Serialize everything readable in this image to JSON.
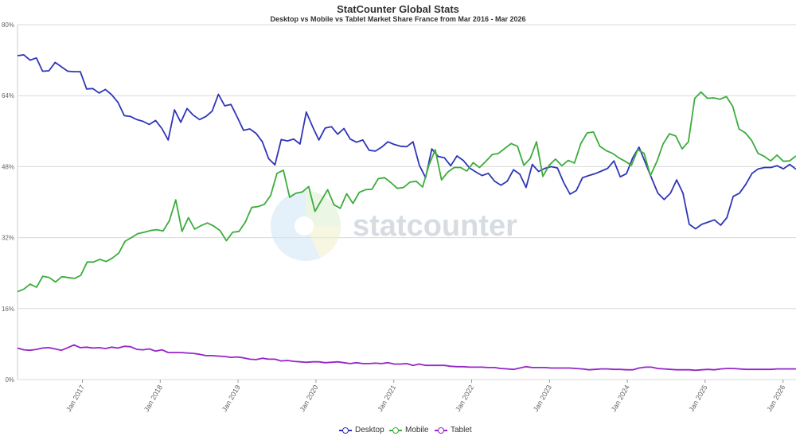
{
  "chart_data": {
    "type": "line",
    "title": "StatCounter Global Stats",
    "subtitle": "Desktop vs Mobile vs Tablet Market Share France from Mar 2016 - Mar 2026",
    "watermark": "statcounter",
    "x_start": "2016-03",
    "x_end": "2026-03",
    "x_tick_labels": [
      "Jan 2017",
      "Jan 2018",
      "Jan 2019",
      "Jan 2020",
      "Jan 2021",
      "Jan 2022",
      "Jan 2023",
      "Jan 2024",
      "Jan 2025",
      "Jan 2026"
    ],
    "y_tick_labels": [
      "0%",
      "16%",
      "32%",
      "48%",
      "64%",
      "80%"
    ],
    "ylim": [
      0,
      80
    ],
    "grid": true,
    "legend_position": "bottom",
    "series": [
      {
        "name": "Desktop",
        "color": "#2f36b5",
        "values": [
          73.0,
          73.2,
          72.0,
          72.5,
          69.5,
          69.6,
          71.5,
          70.5,
          69.5,
          69.4,
          69.4,
          65.5,
          65.6,
          64.6,
          65.4,
          64.2,
          62.5,
          59.5,
          59.3,
          58.6,
          58.2,
          57.5,
          58.4,
          56.6,
          54.0,
          60.8,
          58.0,
          61.1,
          59.6,
          58.6,
          59.3,
          60.5,
          64.3,
          61.7,
          62.0,
          59.2,
          56.2,
          56.5,
          55.5,
          53.6,
          49.8,
          48.4,
          54.1,
          53.8,
          54.2,
          53.1,
          60.3,
          57.0,
          54.0,
          56.7,
          57.0,
          55.3,
          56.6,
          54.2,
          53.5,
          54.0,
          51.7,
          51.5,
          52.4,
          53.6,
          53.0,
          52.6,
          52.5,
          53.6,
          48.3,
          45.5,
          52.0,
          50.3,
          50.0,
          48.2,
          50.4,
          49.4,
          47.7,
          46.8,
          46.0,
          46.5,
          44.7,
          43.8,
          44.7,
          47.3,
          46.3,
          43.3,
          48.5,
          46.9,
          47.6,
          48.0,
          47.7,
          44.4,
          41.8,
          42.6,
          45.5,
          46.0,
          46.4,
          47.0,
          47.6,
          49.3,
          45.7,
          46.4,
          50.0,
          52.4,
          48.9,
          45.4,
          42.0,
          40.6,
          42.0,
          45.0,
          42.0,
          35.0,
          34.0,
          35.0,
          35.5,
          36.0,
          34.8,
          36.5,
          41.3,
          42.0,
          44.0,
          46.5,
          47.5,
          47.8,
          47.8,
          48.2,
          47.5,
          48.5,
          47.4
        ]
      },
      {
        "name": "Mobile",
        "color": "#3bad3b",
        "values": [
          19.8,
          20.4,
          21.5,
          20.8,
          23.3,
          23.0,
          22.0,
          23.2,
          23.0,
          22.8,
          23.5,
          26.5,
          26.5,
          27.1,
          26.6,
          27.4,
          28.5,
          31.2,
          32.0,
          32.9,
          33.2,
          33.6,
          33.8,
          33.5,
          35.8,
          40.5,
          33.4,
          36.5,
          33.9,
          34.7,
          35.3,
          34.6,
          33.6,
          31.3,
          33.2,
          33.4,
          35.5,
          38.8,
          39.0,
          39.5,
          41.5,
          46.5,
          47.2,
          41.1,
          42.0,
          42.3,
          43.5,
          37.9,
          40.4,
          42.8,
          39.4,
          38.6,
          41.9,
          39.7,
          42.2,
          42.8,
          42.9,
          45.3,
          45.5,
          44.4,
          43.1,
          43.3,
          44.5,
          44.7,
          43.4,
          48.3,
          51.8,
          45.0,
          46.8,
          47.8,
          47.8,
          47.0,
          48.9,
          47.8,
          49.2,
          50.7,
          51.0,
          52.1,
          53.2,
          52.6,
          48.3,
          49.8,
          53.6,
          45.8,
          48.3,
          49.7,
          48.2,
          49.4,
          48.8,
          53.2,
          55.6,
          55.8,
          52.6,
          51.6,
          51.0,
          50.0,
          49.2,
          48.3,
          51.8,
          51.0,
          46.0,
          49.1,
          53.1,
          55.4,
          54.9,
          52.0,
          53.6,
          63.4,
          64.8,
          63.4,
          63.5,
          63.2,
          63.8,
          61.6,
          56.5,
          55.6,
          53.9,
          51.0,
          50.3,
          49.3,
          50.6,
          49.2,
          49.3,
          50.4
        ]
      },
      {
        "name": "Tablet",
        "color": "#9526c7",
        "values": [
          7.1,
          6.7,
          6.6,
          6.8,
          7.1,
          7.2,
          6.9,
          6.6,
          7.2,
          7.8,
          7.2,
          7.3,
          7.1,
          7.2,
          7.0,
          7.3,
          7.1,
          7.5,
          7.4,
          6.8,
          6.7,
          6.9,
          6.4,
          6.7,
          6.1,
          6.1,
          6.1,
          6.0,
          5.9,
          5.7,
          5.4,
          5.4,
          5.3,
          5.2,
          5.0,
          5.1,
          4.9,
          4.6,
          4.5,
          4.8,
          4.6,
          4.6,
          4.2,
          4.3,
          4.1,
          4.0,
          3.9,
          4.0,
          4.0,
          3.8,
          3.9,
          4.0,
          3.8,
          3.6,
          3.8,
          3.6,
          3.6,
          3.7,
          3.6,
          3.8,
          3.5,
          3.5,
          3.6,
          3.2,
          3.5,
          3.2,
          3.2,
          3.2,
          3.2,
          3.0,
          2.9,
          2.9,
          2.8,
          2.8,
          2.8,
          2.7,
          2.7,
          2.5,
          2.4,
          2.3,
          2.6,
          2.9,
          2.7,
          2.7,
          2.7,
          2.6,
          2.6,
          2.6,
          2.6,
          2.5,
          2.4,
          2.2,
          2.3,
          2.4,
          2.4,
          2.3,
          2.3,
          2.2,
          2.2,
          2.6,
          2.8,
          2.8,
          2.5,
          2.4,
          2.3,
          2.2,
          2.2,
          2.2,
          2.1,
          2.2,
          2.3,
          2.2,
          2.4,
          2.5,
          2.5,
          2.4,
          2.3,
          2.3,
          2.3,
          2.3,
          2.3,
          2.4,
          2.4,
          2.4,
          2.4
        ]
      }
    ]
  }
}
